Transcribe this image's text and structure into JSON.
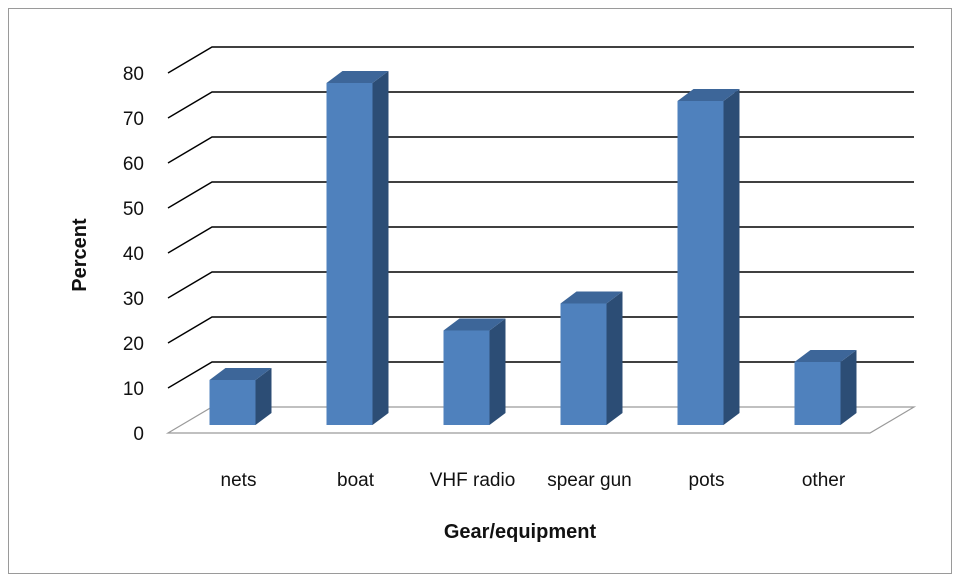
{
  "chart_data": {
    "type": "bar",
    "title": "",
    "xlabel": "Gear/equipment",
    "ylabel": "Percent",
    "categories": [
      "nets",
      "boat",
      "VHF radio",
      "spear gun",
      "pots",
      "other"
    ],
    "values": [
      10,
      76,
      21,
      27,
      72,
      14
    ],
    "ylim": [
      0,
      80
    ],
    "yticks": [
      0,
      10,
      20,
      30,
      40,
      50,
      60,
      70,
      80
    ],
    "grid": true,
    "legend": "none",
    "colors": {
      "bar_front": "#4f81bd",
      "bar_side": "#2c4d75",
      "bar_top": "#3d6699",
      "grid": "#000000",
      "floor": "#9a9a9a"
    }
  }
}
